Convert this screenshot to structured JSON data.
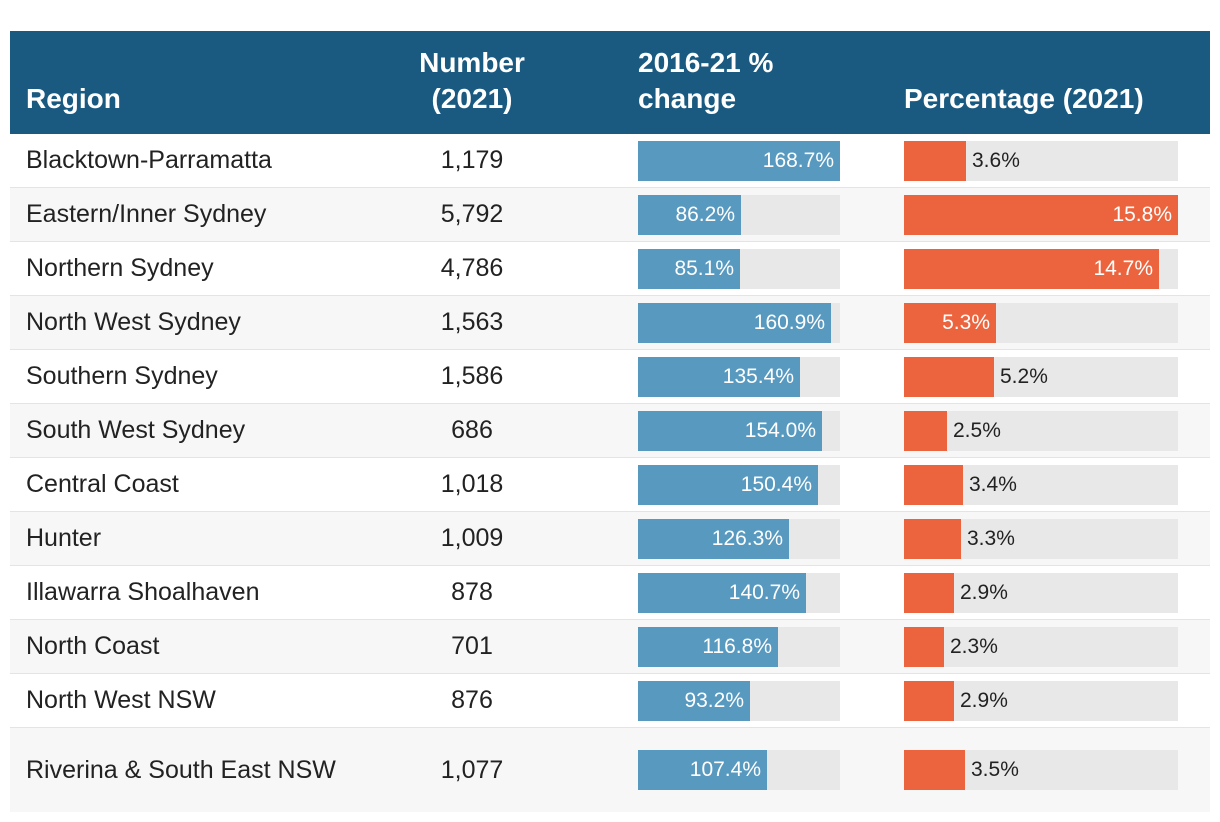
{
  "chart_data": {
    "type": "table",
    "columns": [
      "Region",
      "Number (2021)",
      "2016-21 % change",
      "Percentage (2021)"
    ],
    "change_max": 168.7,
    "pct_max": 15.8,
    "rows": [
      {
        "region": "Blacktown-Parramatta",
        "number": "1,179",
        "change": 168.7,
        "change_label": "168.7%",
        "pct": 3.6,
        "pct_label": "3.6%"
      },
      {
        "region": "Eastern/Inner Sydney",
        "number": "5,792",
        "change": 86.2,
        "change_label": "86.2%",
        "pct": 15.8,
        "pct_label": "15.8%"
      },
      {
        "region": "Northern Sydney",
        "number": "4,786",
        "change": 85.1,
        "change_label": "85.1%",
        "pct": 14.7,
        "pct_label": "14.7%"
      },
      {
        "region": "North West Sydney",
        "number": "1,563",
        "change": 160.9,
        "change_label": "160.9%",
        "pct": 5.3,
        "pct_label": "5.3%"
      },
      {
        "region": "Southern Sydney",
        "number": "1,586",
        "change": 135.4,
        "change_label": "135.4%",
        "pct": 5.2,
        "pct_label": "5.2%"
      },
      {
        "region": "South West Sydney",
        "number": "686",
        "change": 154.0,
        "change_label": "154.0%",
        "pct": 2.5,
        "pct_label": "2.5%"
      },
      {
        "region": "Central Coast",
        "number": "1,018",
        "change": 150.4,
        "change_label": "150.4%",
        "pct": 3.4,
        "pct_label": "3.4%"
      },
      {
        "region": "Hunter",
        "number": "1,009",
        "change": 126.3,
        "change_label": "126.3%",
        "pct": 3.3,
        "pct_label": "3.3%"
      },
      {
        "region": "Illawarra Shoalhaven",
        "number": "878",
        "change": 140.7,
        "change_label": "140.7%",
        "pct": 2.9,
        "pct_label": "2.9%"
      },
      {
        "region": "North Coast",
        "number": "701",
        "change": 116.8,
        "change_label": "116.8%",
        "pct": 2.3,
        "pct_label": "2.3%"
      },
      {
        "region": "North West NSW",
        "number": "876",
        "change": 93.2,
        "change_label": "93.2%",
        "pct": 2.9,
        "pct_label": "2.9%"
      },
      {
        "region": "Riverina & South East NSW",
        "number": "1,077",
        "change": 107.4,
        "change_label": "107.4%",
        "pct": 3.5,
        "pct_label": "3.5%"
      }
    ]
  },
  "colors": {
    "header": "#1b5a80",
    "change_bar": "#5899c0",
    "pct_bar": "#ec643d",
    "track": "#e8e8e8"
  }
}
